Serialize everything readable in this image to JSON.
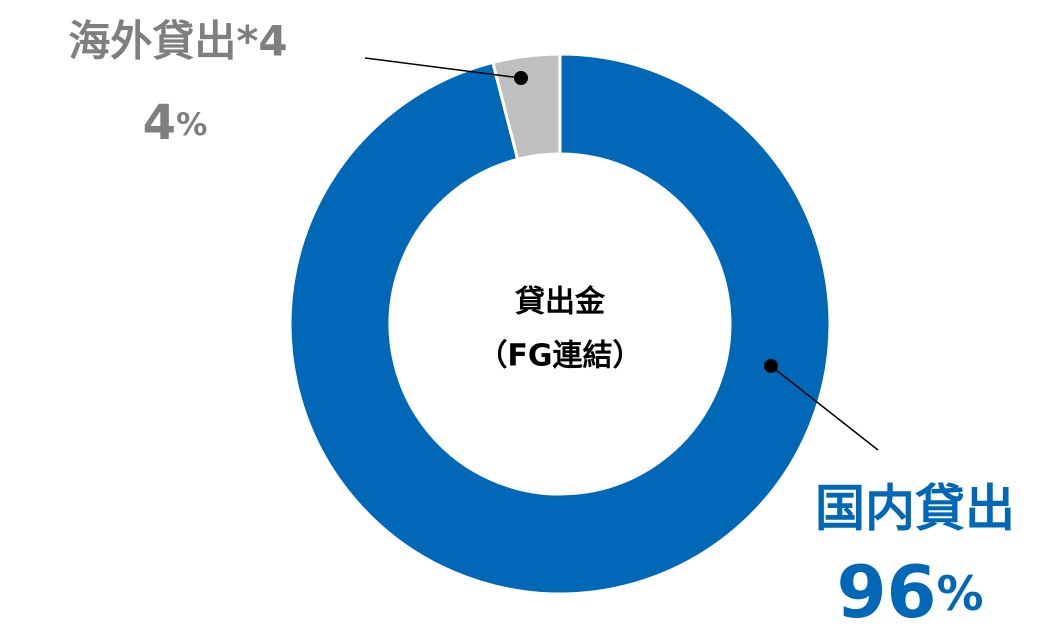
{
  "chart_data": {
    "type": "donut",
    "center_label": [
      "貸出金",
      "（FG連結）"
    ],
    "categories": [
      "国内貸出",
      "海外貸出*4"
    ],
    "values": [
      96,
      4
    ],
    "value_labels": [
      "96%",
      "4%"
    ],
    "colors": [
      "#0068b7",
      "#bfbfbf"
    ]
  }
}
